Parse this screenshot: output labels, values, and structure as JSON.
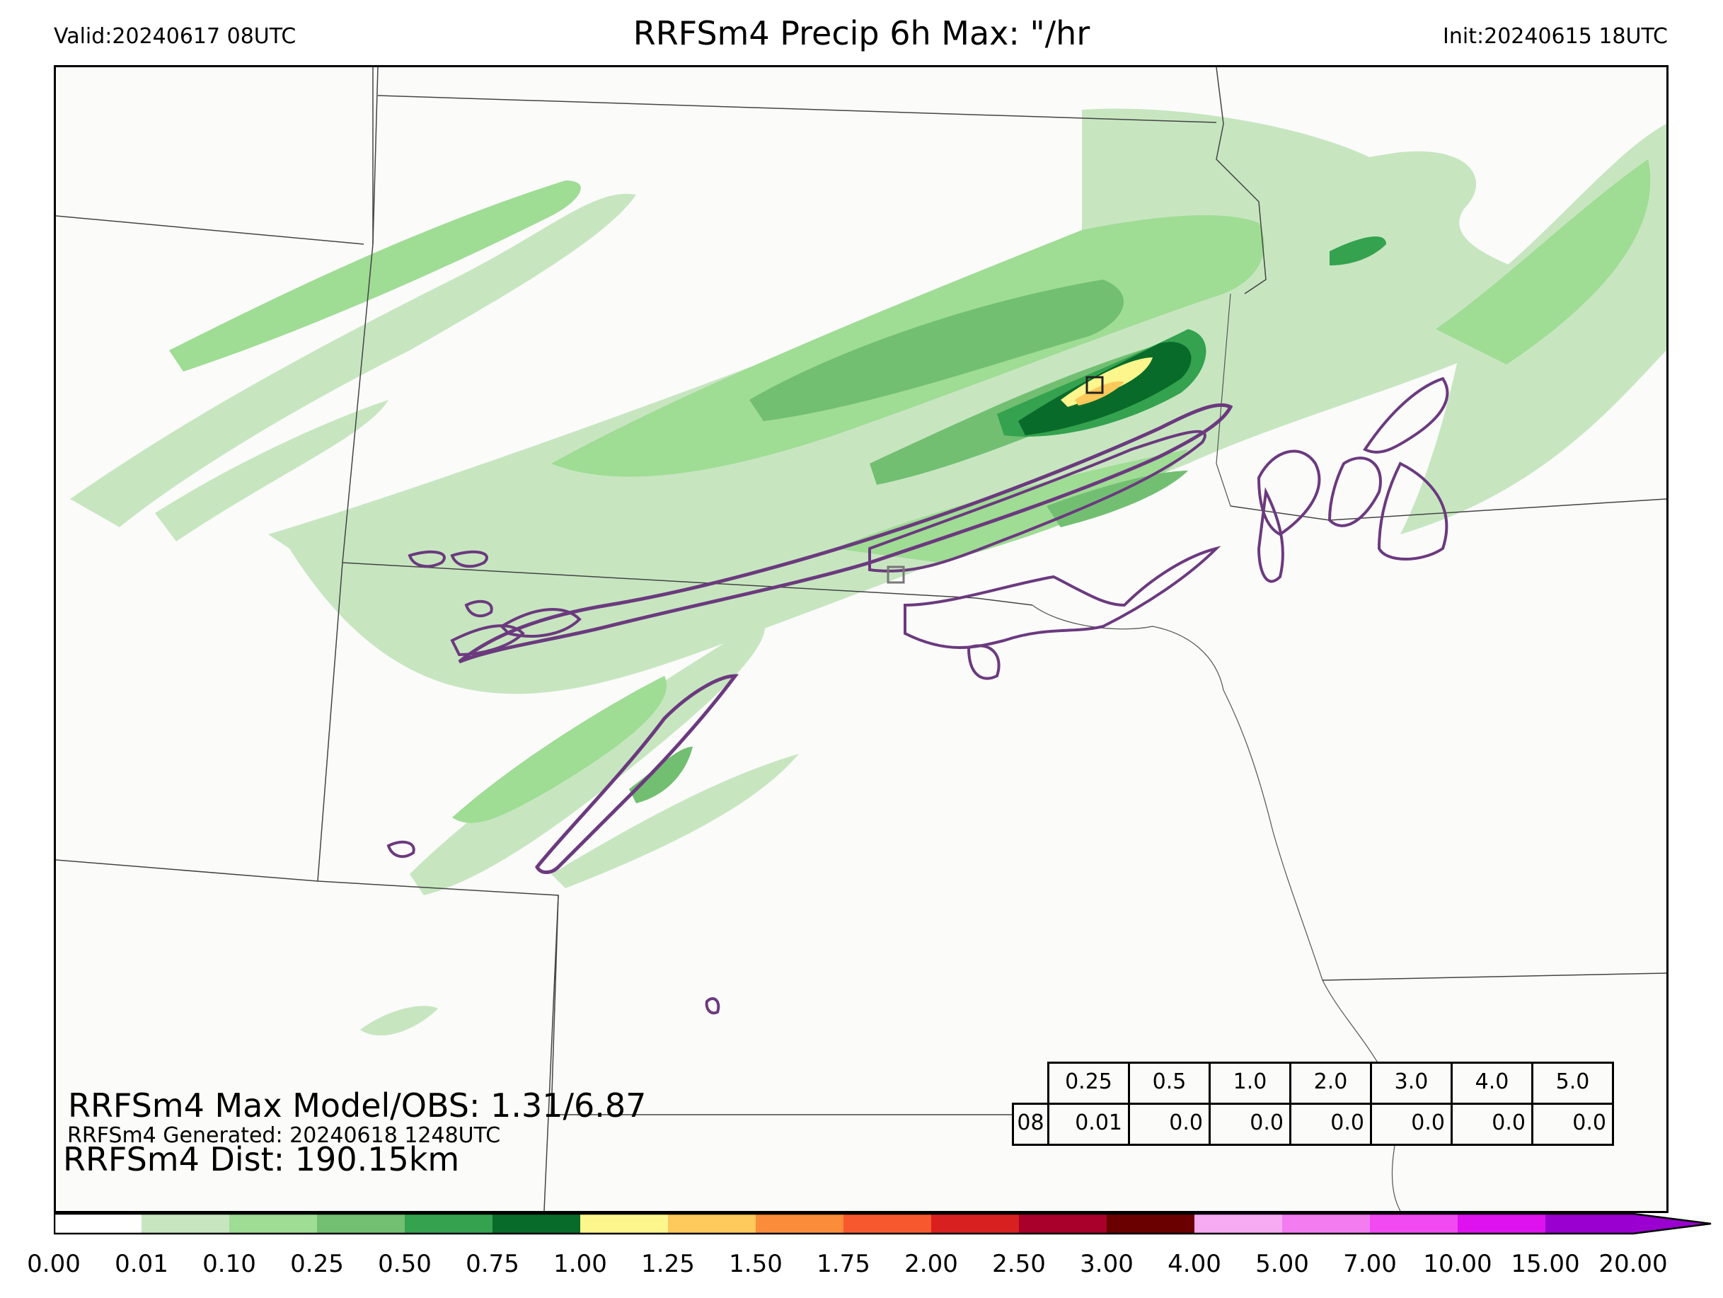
{
  "header": {
    "valid": "Valid:20240617 08UTC",
    "title": "RRFSm4 Precip 6h Max: \"/hr",
    "init": "Init:20240615 18UTC"
  },
  "info": {
    "max_line": "RRFSm4 Max Model/OBS: 1.31/6.87",
    "generated_line": "RRFSm4 Generated: 20240618 1248UTC",
    "dist_line": "RRFSm4 Dist: 190.15km"
  },
  "stats_table": {
    "thresholds": [
      "0.25",
      "0.5",
      "1.0",
      "2.0",
      "3.0",
      "4.0",
      "5.0"
    ],
    "row_label": "08",
    "values": [
      "0.01",
      "0.0",
      "0.0",
      "0.0",
      "0.0",
      "0.0",
      "0.0"
    ]
  },
  "colorbar": {
    "ticks": [
      "0.00",
      "0.01",
      "0.10",
      "0.25",
      "0.50",
      "0.75",
      "1.00",
      "1.25",
      "1.50",
      "1.75",
      "2.00",
      "2.50",
      "3.00",
      "4.00",
      "5.00",
      "7.00",
      "10.00",
      "15.00",
      "20.00"
    ],
    "colors": [
      "#ffffff",
      "#c7e6c0",
      "#9fdc94",
      "#72bf72",
      "#34a24e",
      "#096b2a",
      "#fcf68c",
      "#fcc95a",
      "#fa8c3a",
      "#f8582e",
      "#d92020",
      "#a8002a",
      "#6a0000",
      "#f6aaf2",
      "#f37cf0",
      "#f04af0",
      "#de12ee",
      "#9a00cf"
    ]
  },
  "colors": {
    "contour": "#6b3a7e",
    "state_border": "#333333",
    "map_background": "#fbfbfa"
  }
}
